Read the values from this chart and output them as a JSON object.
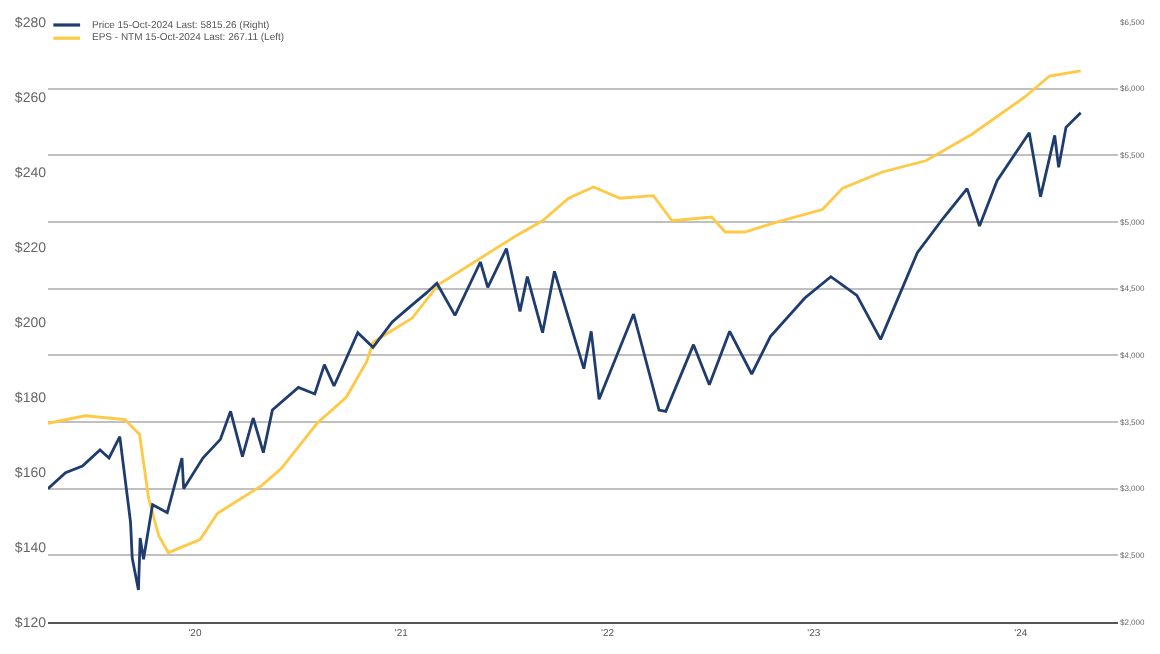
{
  "chart_data": {
    "type": "line",
    "xlim": [
      "2019-10-15",
      "2024-12-20"
    ],
    "xticks": [
      {
        "value": "2020-07-01",
        "label": "'20"
      },
      {
        "value": "2021-07-01",
        "label": "'21"
      },
      {
        "value": "2022-07-01",
        "label": "'22"
      },
      {
        "value": "2023-07-01",
        "label": "'23"
      },
      {
        "value": "2024-07-01",
        "label": "'24"
      }
    ],
    "ylim": [
      120,
      280
    ],
    "yticks": [
      {
        "value": 120,
        "label": "$120"
      },
      {
        "value": 140,
        "label": "$140"
      },
      {
        "value": 160,
        "label": "$160"
      },
      {
        "value": 180,
        "label": "$180"
      },
      {
        "value": 200,
        "label": "$200"
      },
      {
        "value": 220,
        "label": "$220"
      },
      {
        "value": 240,
        "label": "$240"
      },
      {
        "value": 260,
        "label": "$260"
      },
      {
        "value": 280,
        "label": "$280"
      }
    ],
    "y2lim": [
      2000,
      6500
    ],
    "y2ticks": [
      {
        "value": 2000,
        "label": "$2,000"
      },
      {
        "value": 2500,
        "label": "$2,500"
      },
      {
        "value": 3000,
        "label": "$3,000"
      },
      {
        "value": 3500,
        "label": "$3,500"
      },
      {
        "value": 4000,
        "label": "$4,000"
      },
      {
        "value": 4500,
        "label": "$4,500"
      },
      {
        "value": 5000,
        "label": "$5,000"
      },
      {
        "value": 5500,
        "label": "$5,500"
      },
      {
        "value": 6000,
        "label": "$6,000"
      },
      {
        "value": 6500,
        "label": "$6,500"
      }
    ],
    "grid": "y2",
    "legend": "top left",
    "marker": "none",
    "line_style": "solid",
    "series": [
      {
        "name": "Price 15-Oct-2024 Last: 5815.26 (Right)",
        "color": "#1f3c6e",
        "axis": "y2",
        "x": [
          "2019-10-15",
          "2019-11-15",
          "2019-12-15",
          "2020-01-15",
          "2020-01-31",
          "2020-02-19",
          "2020-03-09",
          "2020-03-12",
          "2020-03-23",
          "2020-03-26",
          "2020-04-01",
          "2020-04-17",
          "2020-05-13",
          "2020-06-08",
          "2020-06-11",
          "2020-07-15",
          "2020-08-15",
          "2020-09-02",
          "2020-09-23",
          "2020-10-12",
          "2020-10-30",
          "2020-11-15",
          "2020-12-31",
          "2021-01-29",
          "2021-02-15",
          "2021-03-04",
          "2021-04-15",
          "2021-05-12",
          "2021-06-15",
          "2021-07-15",
          "2021-08-15",
          "2021-09-02",
          "2021-10-04",
          "2021-11-18",
          "2021-12-01",
          "2022-01-03",
          "2022-01-27",
          "2022-02-09",
          "2022-03-08",
          "2022-03-29",
          "2022-05-20",
          "2022-06-02",
          "2022-06-16",
          "2022-08-16",
          "2022-09-30",
          "2022-10-12",
          "2022-11-30",
          "2022-12-28",
          "2023-02-02",
          "2023-03-13",
          "2023-04-15",
          "2023-06-15",
          "2023-07-31",
          "2023-09-15",
          "2023-10-27",
          "2023-12-31",
          "2024-02-15",
          "2024-03-28",
          "2024-04-19",
          "2024-05-20",
          "2024-07-16",
          "2024-08-05",
          "2024-08-30",
          "2024-09-06",
          "2024-09-19",
          "2024-10-15"
        ],
        "values": [
          3000,
          3120,
          3170,
          3290,
          3230,
          3390,
          2750,
          2480,
          2240,
          2630,
          2470,
          2880,
          2820,
          3230,
          3000,
          3230,
          3370,
          3580,
          3240,
          3530,
          3270,
          3590,
          3760,
          3710,
          3930,
          3770,
          4170,
          4060,
          4250,
          4360,
          4470,
          4540,
          4300,
          4700,
          4510,
          4800,
          4330,
          4590,
          4170,
          4630,
          3900,
          4180,
          3670,
          4310,
          3590,
          3580,
          4080,
          3780,
          4180,
          3860,
          4140,
          4430,
          4590,
          4450,
          4120,
          4770,
          5030,
          5250,
          4970,
          5310,
          5670,
          5190,
          5650,
          5410,
          5710,
          5820
        ]
      },
      {
        "name": "EPS - NTM 15-Oct-2024 Last: 267.11 (Left)",
        "color": "#ffc845",
        "x": [
          "2019-10-15",
          "2019-12-20",
          "2020-02-28",
          "2020-03-25",
          "2020-04-10",
          "2020-04-28",
          "2020-05-15",
          "2020-07-10",
          "2020-08-10",
          "2020-10-28",
          "2020-12-01",
          "2021-02-02",
          "2021-03-26",
          "2021-05-01",
          "2021-05-12",
          "2021-07-20",
          "2021-09-05",
          "2022-01-20",
          "2022-03-08",
          "2022-04-23",
          "2022-06-06",
          "2022-07-23",
          "2022-09-20",
          "2022-10-23",
          "2023-01-01",
          "2023-01-25",
          "2023-03-01",
          "2023-04-23",
          "2023-07-16",
          "2023-08-21",
          "2023-10-30",
          "2024-01-15",
          "2024-04-05",
          "2024-07-08",
          "2024-08-21",
          "2024-10-15"
        ],
        "values": [
          173,
          175,
          174,
          170,
          153,
          143,
          138.5,
          142,
          149,
          156.5,
          161,
          173,
          180,
          189.5,
          194.6,
          201,
          210,
          223,
          227,
          233,
          236,
          233,
          233.7,
          227,
          228,
          224,
          224,
          226.5,
          230,
          235.7,
          240,
          243,
          250,
          260,
          265.6,
          267
        ]
      }
    ]
  }
}
